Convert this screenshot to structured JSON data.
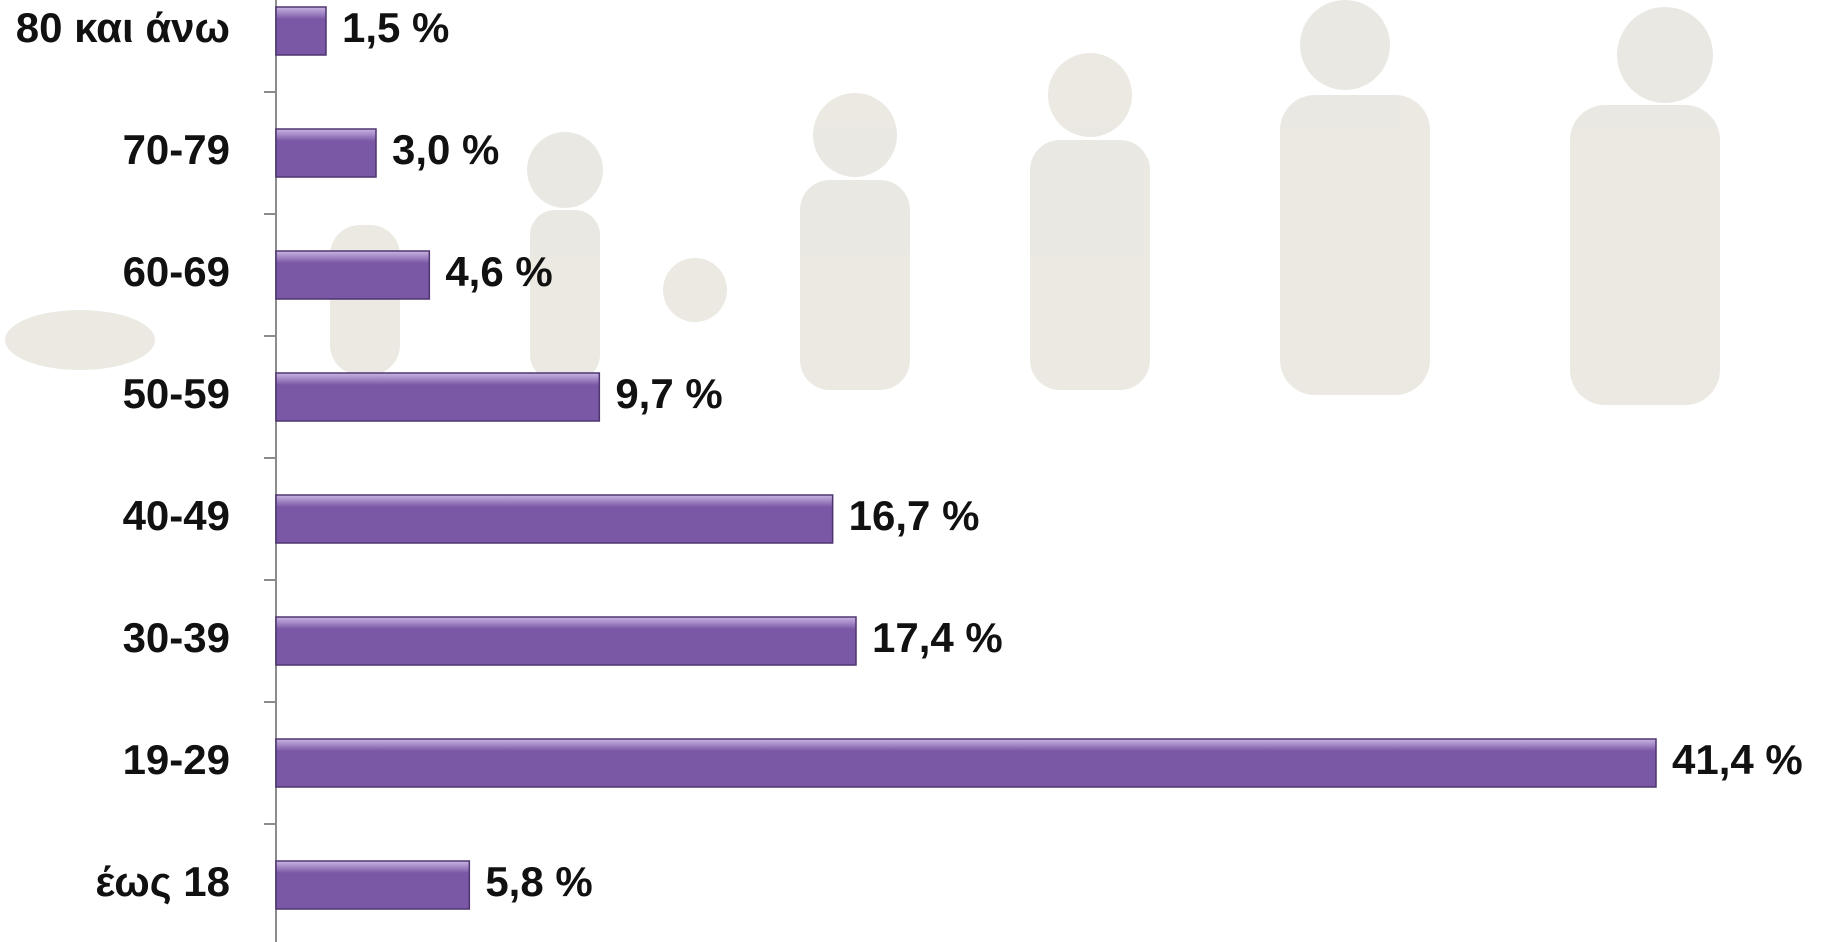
{
  "chart_data": {
    "type": "hbar",
    "categories": [
      "80 και άνω",
      "70-79",
      "60-69",
      "50-59",
      "40-49",
      "30-39",
      "19-29",
      "έως 18"
    ],
    "values": [
      1.5,
      3.0,
      4.6,
      9.7,
      16.7,
      17.4,
      41.4,
      5.8
    ],
    "value_labels": [
      "1,5 %",
      "3,0 %",
      "4,6 %",
      "9,7 %",
      "16,7 %",
      "17,4 %",
      "41,4 %",
      "5,8 %"
    ],
    "color": "#7b58a6"
  }
}
